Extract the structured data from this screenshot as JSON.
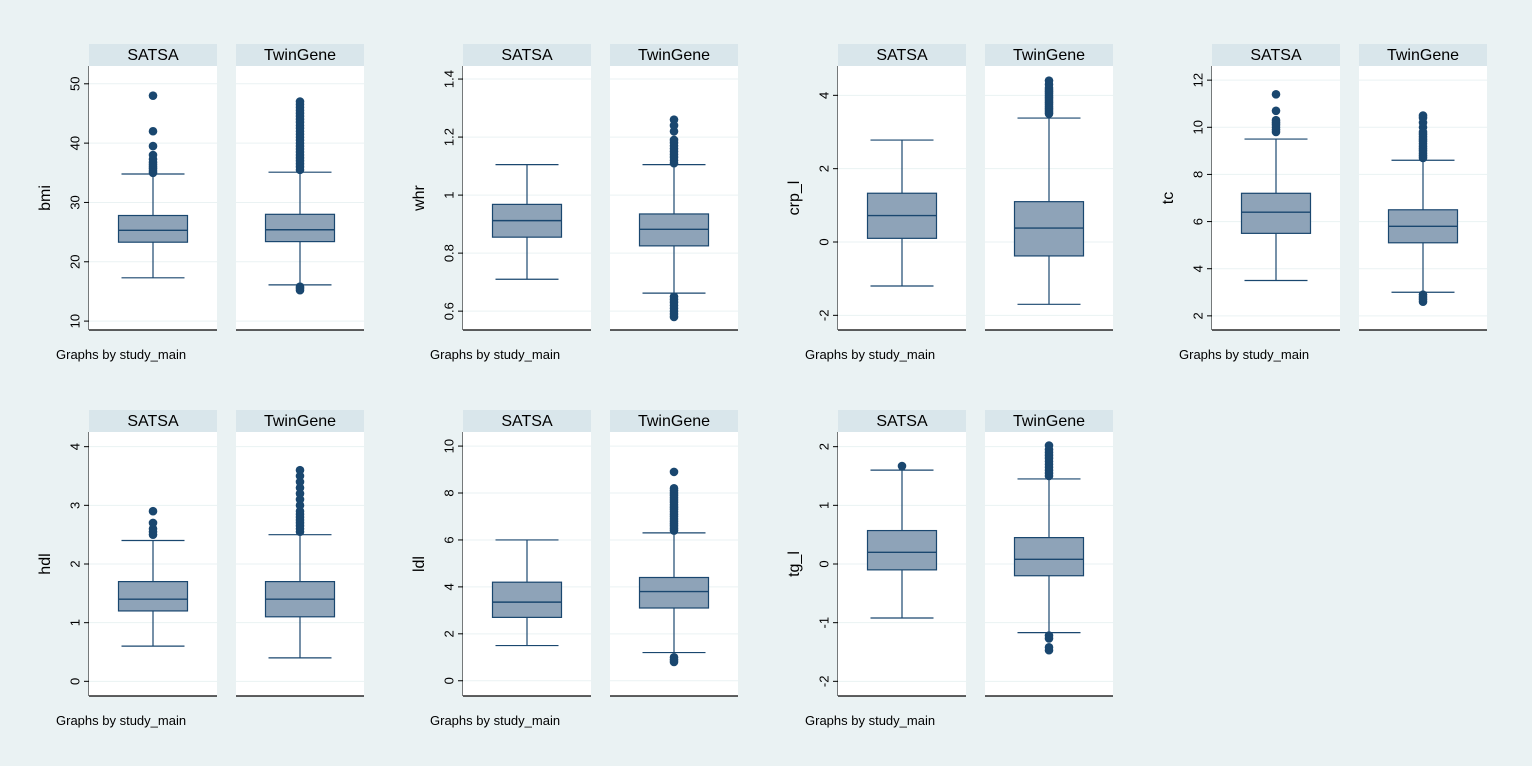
{
  "footnote": "Graphs by study_main",
  "colors": {
    "background": "#eaf2f3",
    "panel_bg": "#ffffff",
    "strip_bg": "#d9e6eb",
    "box_fill": "#8ea3b8",
    "box_stroke": "#1a476f",
    "marker": "#1a476f",
    "grid": "#eaf2f3",
    "axis": "#000000"
  },
  "chart_data": [
    {
      "type": "box",
      "ylabel": "bmi",
      "ylim": [
        8.5,
        53
      ],
      "yticks": [
        10,
        20,
        30,
        40,
        50
      ],
      "groups": [
        {
          "name": "SATSA",
          "whisker_low": 17.3,
          "q1": 23.3,
          "median": 25.3,
          "q3": 27.8,
          "whisker_high": 34.8,
          "outliers": [
            35,
            35.3,
            35.7,
            36,
            36.4,
            36.8,
            37.3,
            38,
            39.5,
            42,
            48
          ]
        },
        {
          "name": "TwinGene",
          "whisker_low": 16.1,
          "q1": 23.4,
          "median": 25.4,
          "q3": 28,
          "whisker_high": 35.1,
          "outliers": [
            15.2,
            15.5,
            15.8,
            35.5,
            36,
            36.5,
            37,
            37.5,
            38,
            38.5,
            39,
            39.5,
            40,
            40.5,
            41,
            41.5,
            42,
            42.5,
            43,
            43.5,
            44,
            44.5,
            45,
            45.5,
            46,
            46.5,
            47
          ]
        }
      ]
    },
    {
      "type": "box",
      "ylabel": "whr",
      "ylim": [
        0.535,
        1.445
      ],
      "yticks": [
        0.6,
        0.8,
        1,
        1.2,
        1.4
      ],
      "groups": [
        {
          "name": "SATSA",
          "whisker_low": 0.71,
          "q1": 0.855,
          "median": 0.912,
          "q3": 0.968,
          "whisker_high": 1.105,
          "outliers": []
        },
        {
          "name": "TwinGene",
          "whisker_low": 0.662,
          "q1": 0.825,
          "median": 0.882,
          "q3": 0.935,
          "whisker_high": 1.105,
          "outliers": [
            0.58,
            0.59,
            0.6,
            0.61,
            0.62,
            0.63,
            0.64,
            0.65,
            1.11,
            1.12,
            1.13,
            1.14,
            1.15,
            1.16,
            1.17,
            1.18,
            1.19,
            1.22,
            1.24,
            1.26
          ]
        }
      ]
    },
    {
      "type": "box",
      "ylabel": "crp_l",
      "ylim": [
        -2.4,
        4.8
      ],
      "yticks": [
        -2,
        0,
        2,
        4
      ],
      "groups": [
        {
          "name": "SATSA",
          "whisker_low": -1.2,
          "q1": 0.1,
          "median": 0.72,
          "q3": 1.33,
          "whisker_high": 2.78,
          "outliers": []
        },
        {
          "name": "TwinGene",
          "whisker_low": -1.7,
          "q1": -0.38,
          "median": 0.38,
          "q3": 1.1,
          "whisker_high": 3.38,
          "outliers": [
            3.5,
            3.55,
            3.6,
            3.65,
            3.7,
            3.75,
            3.8,
            3.85,
            3.9,
            3.95,
            4,
            4.05,
            4.1,
            4.15,
            4.2,
            4.3,
            4.4
          ]
        }
      ]
    },
    {
      "type": "box",
      "ylabel": "tc",
      "ylim": [
        1.4,
        12.6
      ],
      "yticks": [
        2,
        4,
        6,
        8,
        10,
        12
      ],
      "groups": [
        {
          "name": "SATSA",
          "whisker_low": 3.5,
          "q1": 5.5,
          "median": 6.4,
          "q3": 7.2,
          "whisker_high": 9.5,
          "outliers": [
            9.8,
            9.9,
            10,
            10.1,
            10.2,
            10.3,
            10.7,
            11.4
          ]
        },
        {
          "name": "TwinGene",
          "whisker_low": 3,
          "q1": 5.1,
          "median": 5.8,
          "q3": 6.5,
          "whisker_high": 8.6,
          "outliers": [
            2.6,
            2.7,
            2.8,
            2.9,
            8.7,
            8.8,
            8.9,
            9,
            9.1,
            9.2,
            9.3,
            9.4,
            9.5,
            9.6,
            9.7,
            9.8,
            10,
            10.2,
            10.4,
            10.5
          ]
        }
      ]
    },
    {
      "type": "box",
      "ylabel": "hdl",
      "ylim": [
        -0.25,
        4.25
      ],
      "yticks": [
        0,
        1,
        2,
        3,
        4
      ],
      "groups": [
        {
          "name": "SATSA",
          "whisker_low": 0.6,
          "q1": 1.2,
          "median": 1.4,
          "q3": 1.7,
          "whisker_high": 2.4,
          "outliers": [
            2.5,
            2.55,
            2.6,
            2.7,
            2.9
          ]
        },
        {
          "name": "TwinGene",
          "whisker_low": 0.4,
          "q1": 1.1,
          "median": 1.4,
          "q3": 1.7,
          "whisker_high": 2.5,
          "outliers": [
            2.55,
            2.6,
            2.65,
            2.7,
            2.75,
            2.8,
            2.85,
            2.9,
            3,
            3.1,
            3.2,
            3.3,
            3.4,
            3.5,
            3.6
          ]
        }
      ]
    },
    {
      "type": "box",
      "ylabel": "ldl",
      "ylim": [
        -0.65,
        10.6
      ],
      "yticks": [
        0,
        2,
        4,
        6,
        8,
        10
      ],
      "groups": [
        {
          "name": "SATSA",
          "whisker_low": 1.5,
          "q1": 2.7,
          "median": 3.35,
          "q3": 4.2,
          "whisker_high": 6,
          "outliers": []
        },
        {
          "name": "TwinGene",
          "whisker_low": 1.2,
          "q1": 3.1,
          "median": 3.8,
          "q3": 4.4,
          "whisker_high": 6.3,
          "outliers": [
            0.8,
            0.9,
            1,
            6.4,
            6.5,
            6.6,
            6.7,
            6.8,
            6.9,
            7,
            7.1,
            7.2,
            7.3,
            7.4,
            7.5,
            7.6,
            7.7,
            7.8,
            7.9,
            8,
            8.1,
            8.2,
            8.9
          ]
        }
      ]
    },
    {
      "type": "box",
      "ylabel": "tg_l",
      "ylim": [
        -2.25,
        2.25
      ],
      "yticks": [
        -2,
        -1,
        0,
        1,
        2
      ],
      "groups": [
        {
          "name": "SATSA",
          "whisker_low": -0.92,
          "q1": -0.1,
          "median": 0.2,
          "q3": 0.57,
          "whisker_high": 1.6,
          "outliers": [
            1.67
          ]
        },
        {
          "name": "TwinGene",
          "whisker_low": -1.17,
          "q1": -0.2,
          "median": 0.08,
          "q3": 0.45,
          "whisker_high": 1.45,
          "outliers": [
            -1.47,
            -1.42,
            -1.27,
            -1.22,
            1.5,
            1.55,
            1.6,
            1.65,
            1.7,
            1.75,
            1.8,
            1.85,
            1.9,
            1.95,
            2.02
          ]
        }
      ]
    }
  ]
}
